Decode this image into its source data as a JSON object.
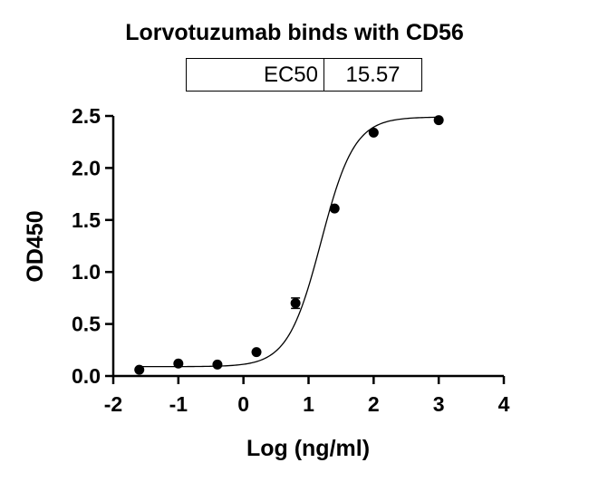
{
  "chart_data": {
    "type": "scatter",
    "title": "Lorvotuzumab binds with CD56",
    "xlabel": "Log (ng/ml)",
    "ylabel": "OD450",
    "xlim": [
      -2,
      4
    ],
    "ylim": [
      0,
      2.5
    ],
    "x_ticks": [
      "-2",
      "-1",
      "0",
      "1",
      "2",
      "3",
      "4"
    ],
    "y_ticks": [
      "0.0",
      "0.5",
      "1.0",
      "1.5",
      "2.0",
      "2.5"
    ],
    "series": [
      {
        "x": [
          -1.6,
          -1.0,
          -0.4,
          0.2,
          0.8,
          1.4,
          2.0,
          3.0
        ],
        "y": [
          0.06,
          0.12,
          0.11,
          0.23,
          0.7,
          1.61,
          2.34,
          2.46
        ],
        "err": [
          0,
          0,
          0,
          0,
          0.05,
          0,
          0,
          0
        ]
      }
    ],
    "fit_curve": {
      "model": "4PL",
      "bottom": 0.09,
      "top": 2.49,
      "logEC50": 1.192,
      "hill": 1.7
    },
    "ec50_table": {
      "label": "EC50",
      "value": "15.57"
    }
  }
}
